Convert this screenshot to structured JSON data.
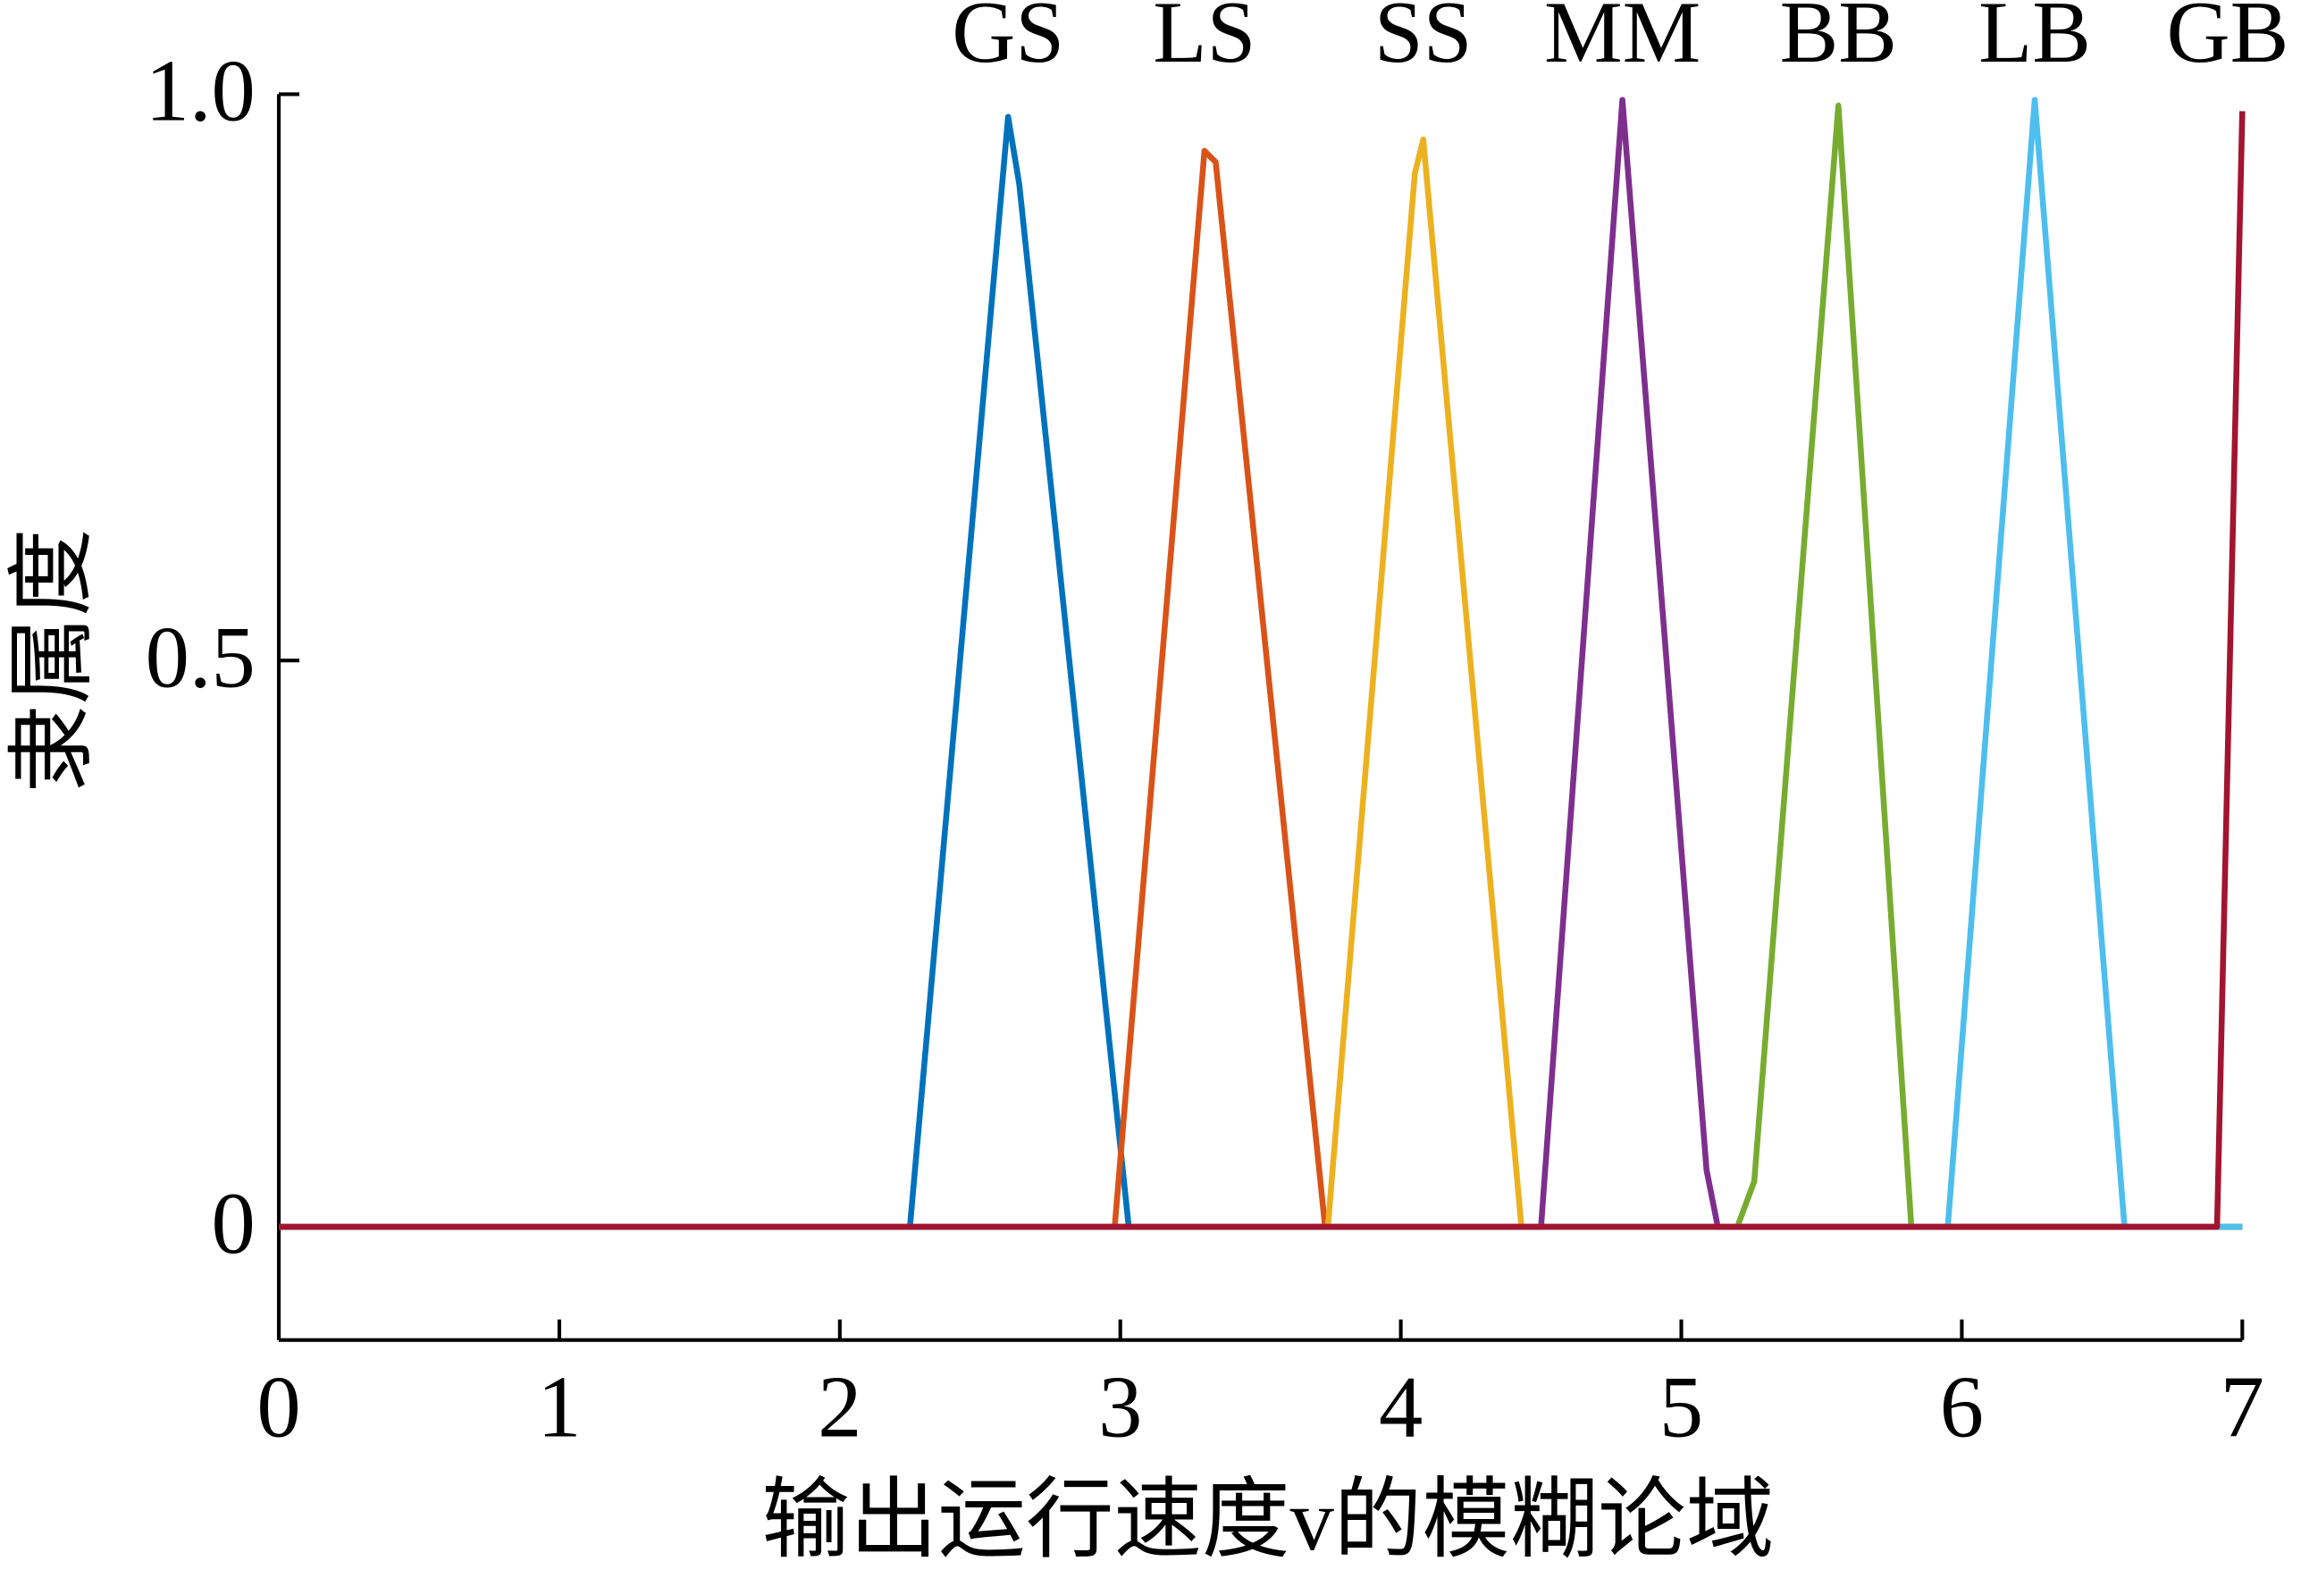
{
  "chart_data": {
    "type": "line",
    "y_label": "隶属度",
    "x_label": "输出运行速度v的模糊论域",
    "xlim": [
      0,
      7
    ],
    "xticks": [
      0,
      1,
      2,
      3,
      4,
      5,
      6,
      7
    ],
    "ylim": [
      -0.1,
      1.0
    ],
    "yticks": [
      0,
      {
        "value": 0.5,
        "label": "0.5"
      },
      {
        "value": 1,
        "label": "1.0"
      }
    ],
    "series": [
      {
        "name": "GS",
        "color": "#0072BD",
        "x": [
          0,
          2.25,
          2.6,
          2.64,
          3.03,
          7
        ],
        "values": [
          0,
          0,
          0.98,
          0.92,
          0,
          0
        ]
      },
      {
        "name": "LS",
        "color": "#D95319",
        "x": [
          0,
          2.98,
          3.3,
          3.34,
          3.73,
          7
        ],
        "values": [
          0,
          0,
          0.95,
          0.94,
          0,
          0
        ]
      },
      {
        "name": "SS",
        "color": "#EDB120",
        "x": [
          0,
          3.74,
          4.05,
          4.08,
          4.43,
          7
        ],
        "values": [
          0,
          0,
          0.93,
          0.96,
          0,
          0
        ]
      },
      {
        "name": "MM",
        "color": "#7E2F8E",
        "x": [
          0,
          4.5,
          4.79,
          5.09,
          5.13,
          7
        ],
        "values": [
          0,
          0,
          0.995,
          0.05,
          0,
          0
        ]
      },
      {
        "name": "BB",
        "color": "#77AC30",
        "x": [
          0,
          5.2,
          5.26,
          5.56,
          5.82,
          7
        ],
        "values": [
          0,
          0,
          0.04,
          0.99,
          0,
          0
        ]
      },
      {
        "name": "LB",
        "color": "#4DBEEE",
        "x": [
          0,
          5.95,
          6.26,
          6.58,
          7
        ],
        "values": [
          0,
          0,
          0.995,
          0,
          0
        ]
      },
      {
        "name": "GB",
        "color": "#A2142F",
        "x": [
          0,
          6.91,
          7.0
        ],
        "values": [
          0,
          0,
          0.985
        ]
      }
    ]
  }
}
